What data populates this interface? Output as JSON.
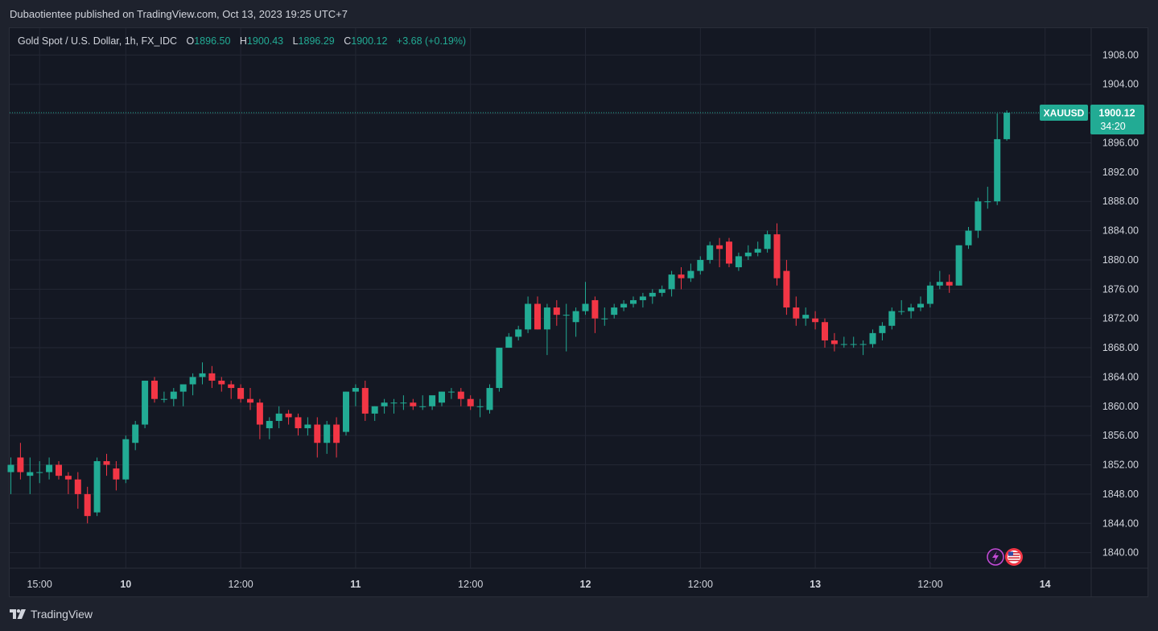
{
  "header": {
    "publisher": "Dubaotientee published on TradingView.com, Oct 13, 2023 19:25 UTC+7"
  },
  "legend": {
    "symbol": "Gold Spot / U.S. Dollar, 1h, FX_IDC",
    "o_label": "O",
    "o_value": "1896.50",
    "h_label": "H",
    "h_value": "1900.43",
    "l_label": "L",
    "l_value": "1896.29",
    "c_label": "C",
    "c_value": "1900.12",
    "change": "+3.68 (+0.19%)"
  },
  "price_tag": {
    "symbol": "XAUUSD",
    "price": "1900.12",
    "countdown": "34:20"
  },
  "footer": {
    "brand": "TradingView"
  },
  "colors": {
    "up": "#22ab94",
    "down": "#f23645",
    "grid": "#232734",
    "text": "#d1d4dc",
    "background": "#141823"
  },
  "icons": [
    "lightning-event-icon",
    "us-flag-event-icon"
  ],
  "chart_data": {
    "type": "candlestick",
    "title": "Gold Spot / U.S. Dollar, 1h, FX_IDC",
    "ylim": [
      1836,
      1912
    ],
    "y_ticks": [
      "1908.00",
      "1904.00",
      "1900.00",
      "1896.00",
      "1892.00",
      "1888.00",
      "1884.00",
      "1880.00",
      "1876.00",
      "1872.00",
      "1868.00",
      "1864.00",
      "1860.00",
      "1856.00",
      "1852.00",
      "1848.00",
      "1844.00",
      "1840.00"
    ],
    "x_ticks": [
      {
        "label": "15:00",
        "bar": 3
      },
      {
        "label": "10",
        "bar": 12
      },
      {
        "label": "12:00",
        "bar": 24
      },
      {
        "label": "11",
        "bar": 36
      },
      {
        "label": "12:00",
        "bar": 48
      },
      {
        "label": "12",
        "bar": 60
      },
      {
        "label": "12:00",
        "bar": 72
      },
      {
        "label": "13",
        "bar": 84
      },
      {
        "label": "12:00",
        "bar": 96
      },
      {
        "label": "14",
        "bar": 108
      }
    ],
    "last_price": 1900.12,
    "ohlc": [
      [
        1851.0,
        1853.0,
        1848.0,
        1852.0
      ],
      [
        1853.0,
        1855.0,
        1850.0,
        1851.0
      ],
      [
        1850.5,
        1853.0,
        1848.0,
        1851.0
      ],
      [
        1851.0,
        1852.5,
        1849.5,
        1851.0
      ],
      [
        1851.0,
        1853.0,
        1850.0,
        1852.0
      ],
      [
        1852.0,
        1852.5,
        1850.0,
        1850.5
      ],
      [
        1850.5,
        1851.0,
        1848.0,
        1850.0
      ],
      [
        1850.0,
        1851.0,
        1846.0,
        1848.0
      ],
      [
        1848.0,
        1849.0,
        1844.0,
        1845.0
      ],
      [
        1845.5,
        1853.0,
        1845.0,
        1852.5
      ],
      [
        1852.5,
        1853.5,
        1850.5,
        1852.0
      ],
      [
        1851.5,
        1852.5,
        1848.5,
        1850.0
      ],
      [
        1850.0,
        1856.0,
        1849.5,
        1855.5
      ],
      [
        1855.0,
        1858.0,
        1854.0,
        1857.5
      ],
      [
        1857.5,
        1863.5,
        1857.0,
        1863.5
      ],
      [
        1863.5,
        1864.0,
        1860.5,
        1861.0
      ],
      [
        1861.0,
        1862.0,
        1860.5,
        1861.0
      ],
      [
        1861.0,
        1862.5,
        1860.0,
        1862.0
      ],
      [
        1862.0,
        1863.0,
        1860.0,
        1863.0
      ],
      [
        1863.0,
        1864.5,
        1861.5,
        1864.0
      ],
      [
        1864.0,
        1866.0,
        1863.0,
        1864.5
      ],
      [
        1864.5,
        1865.5,
        1862.5,
        1863.5
      ],
      [
        1863.5,
        1864.0,
        1862.0,
        1863.0
      ],
      [
        1863.0,
        1863.5,
        1861.0,
        1862.5
      ],
      [
        1862.5,
        1863.0,
        1860.5,
        1861.0
      ],
      [
        1861.0,
        1862.5,
        1859.5,
        1860.5
      ],
      [
        1860.5,
        1861.0,
        1855.5,
        1857.5
      ],
      [
        1857.0,
        1858.5,
        1855.5,
        1858.0
      ],
      [
        1858.0,
        1860.0,
        1857.0,
        1859.0
      ],
      [
        1859.0,
        1859.5,
        1857.5,
        1858.5
      ],
      [
        1858.5,
        1859.0,
        1856.0,
        1857.0
      ],
      [
        1857.0,
        1858.5,
        1856.0,
        1857.5
      ],
      [
        1857.5,
        1858.5,
        1853.0,
        1855.0
      ],
      [
        1855.0,
        1858.0,
        1853.5,
        1857.5
      ],
      [
        1857.5,
        1858.5,
        1853.0,
        1855.0
      ],
      [
        1856.5,
        1862.0,
        1856.0,
        1862.0
      ],
      [
        1862.0,
        1863.0,
        1860.0,
        1862.5
      ],
      [
        1862.5,
        1863.5,
        1858.0,
        1859.0
      ],
      [
        1859.0,
        1860.0,
        1858.0,
        1860.0
      ],
      [
        1860.0,
        1861.0,
        1859.0,
        1860.5
      ],
      [
        1860.5,
        1861.0,
        1859.0,
        1860.5
      ],
      [
        1860.5,
        1861.5,
        1859.5,
        1860.5
      ],
      [
        1860.5,
        1861.0,
        1859.5,
        1860.0
      ],
      [
        1860.0,
        1861.5,
        1859.5,
        1860.0
      ],
      [
        1860.0,
        1861.0,
        1859.5,
        1861.5
      ],
      [
        1860.5,
        1862.0,
        1860.0,
        1862.0
      ],
      [
        1862.0,
        1862.5,
        1861.0,
        1862.0
      ],
      [
        1862.0,
        1862.5,
        1860.0,
        1861.0
      ],
      [
        1861.0,
        1861.5,
        1859.5,
        1860.0
      ],
      [
        1860.0,
        1861.0,
        1858.5,
        1860.0
      ],
      [
        1859.5,
        1863.0,
        1859.0,
        1862.5
      ],
      [
        1862.5,
        1868.0,
        1862.0,
        1868.0
      ],
      [
        1868.0,
        1870.0,
        1868.0,
        1869.5
      ],
      [
        1869.5,
        1871.0,
        1869.0,
        1870.5
      ],
      [
        1870.5,
        1875.0,
        1870.0,
        1874.0
      ],
      [
        1874.0,
        1875.0,
        1870.5,
        1870.5
      ],
      [
        1870.5,
        1874.0,
        1867.0,
        1873.5
      ],
      [
        1873.5,
        1874.5,
        1871.0,
        1872.5
      ],
      [
        1872.5,
        1874.0,
        1867.5,
        1872.5
      ],
      [
        1871.5,
        1873.5,
        1869.5,
        1873.0
      ],
      [
        1873.0,
        1877.0,
        1872.5,
        1874.0
      ],
      [
        1874.5,
        1875.0,
        1870.0,
        1872.0
      ],
      [
        1872.0,
        1873.5,
        1871.0,
        1872.0
      ],
      [
        1872.5,
        1874.0,
        1872.0,
        1873.5
      ],
      [
        1873.5,
        1874.5,
        1873.0,
        1874.0
      ],
      [
        1874.0,
        1875.0,
        1873.5,
        1874.5
      ],
      [
        1874.5,
        1875.5,
        1873.5,
        1875.0
      ],
      [
        1875.0,
        1876.0,
        1874.0,
        1875.5
      ],
      [
        1875.5,
        1876.5,
        1875.0,
        1876.0
      ],
      [
        1876.0,
        1878.5,
        1875.0,
        1878.0
      ],
      [
        1878.0,
        1879.0,
        1876.0,
        1877.5
      ],
      [
        1877.5,
        1879.5,
        1877.0,
        1878.5
      ],
      [
        1878.5,
        1880.5,
        1878.0,
        1880.0
      ],
      [
        1880.0,
        1882.5,
        1879.5,
        1882.0
      ],
      [
        1882.0,
        1883.0,
        1879.0,
        1881.5
      ],
      [
        1882.5,
        1883.0,
        1879.0,
        1879.5
      ],
      [
        1879.0,
        1881.0,
        1878.5,
        1880.5
      ],
      [
        1880.5,
        1882.0,
        1880.0,
        1881.0
      ],
      [
        1881.0,
        1882.5,
        1880.5,
        1881.5
      ],
      [
        1881.5,
        1884.0,
        1881.0,
        1883.5
      ],
      [
        1883.5,
        1885.0,
        1876.5,
        1877.5
      ],
      [
        1878.5,
        1880.0,
        1872.5,
        1873.5
      ],
      [
        1873.5,
        1875.0,
        1871.0,
        1872.0
      ],
      [
        1872.0,
        1873.5,
        1871.0,
        1872.5
      ],
      [
        1872.0,
        1873.0,
        1870.5,
        1871.5
      ],
      [
        1871.5,
        1872.0,
        1868.0,
        1869.0
      ],
      [
        1869.0,
        1870.0,
        1867.5,
        1868.5
      ],
      [
        1868.5,
        1869.5,
        1868.0,
        1868.5
      ],
      [
        1868.5,
        1869.5,
        1868.0,
        1868.5
      ],
      [
        1868.5,
        1869.0,
        1867.0,
        1868.5
      ],
      [
        1868.5,
        1870.5,
        1868.0,
        1870.0
      ],
      [
        1870.0,
        1871.5,
        1869.0,
        1871.0
      ],
      [
        1871.0,
        1873.5,
        1870.5,
        1873.0
      ],
      [
        1873.0,
        1874.5,
        1872.5,
        1873.0
      ],
      [
        1873.0,
        1874.0,
        1872.0,
        1873.5
      ],
      [
        1873.5,
        1875.0,
        1873.0,
        1874.0
      ],
      [
        1874.0,
        1877.0,
        1873.5,
        1876.5
      ],
      [
        1876.5,
        1878.5,
        1876.0,
        1877.0
      ],
      [
        1877.0,
        1878.0,
        1875.5,
        1876.5
      ],
      [
        1876.5,
        1882.0,
        1876.5,
        1882.0
      ],
      [
        1882.0,
        1884.5,
        1881.5,
        1884.0
      ],
      [
        1884.0,
        1888.5,
        1883.0,
        1888.0
      ],
      [
        1888.0,
        1890.0,
        1887.0,
        1888.0
      ],
      [
        1888.0,
        1900.0,
        1887.5,
        1896.5
      ],
      [
        1896.5,
        1900.43,
        1896.29,
        1900.12
      ]
    ]
  }
}
